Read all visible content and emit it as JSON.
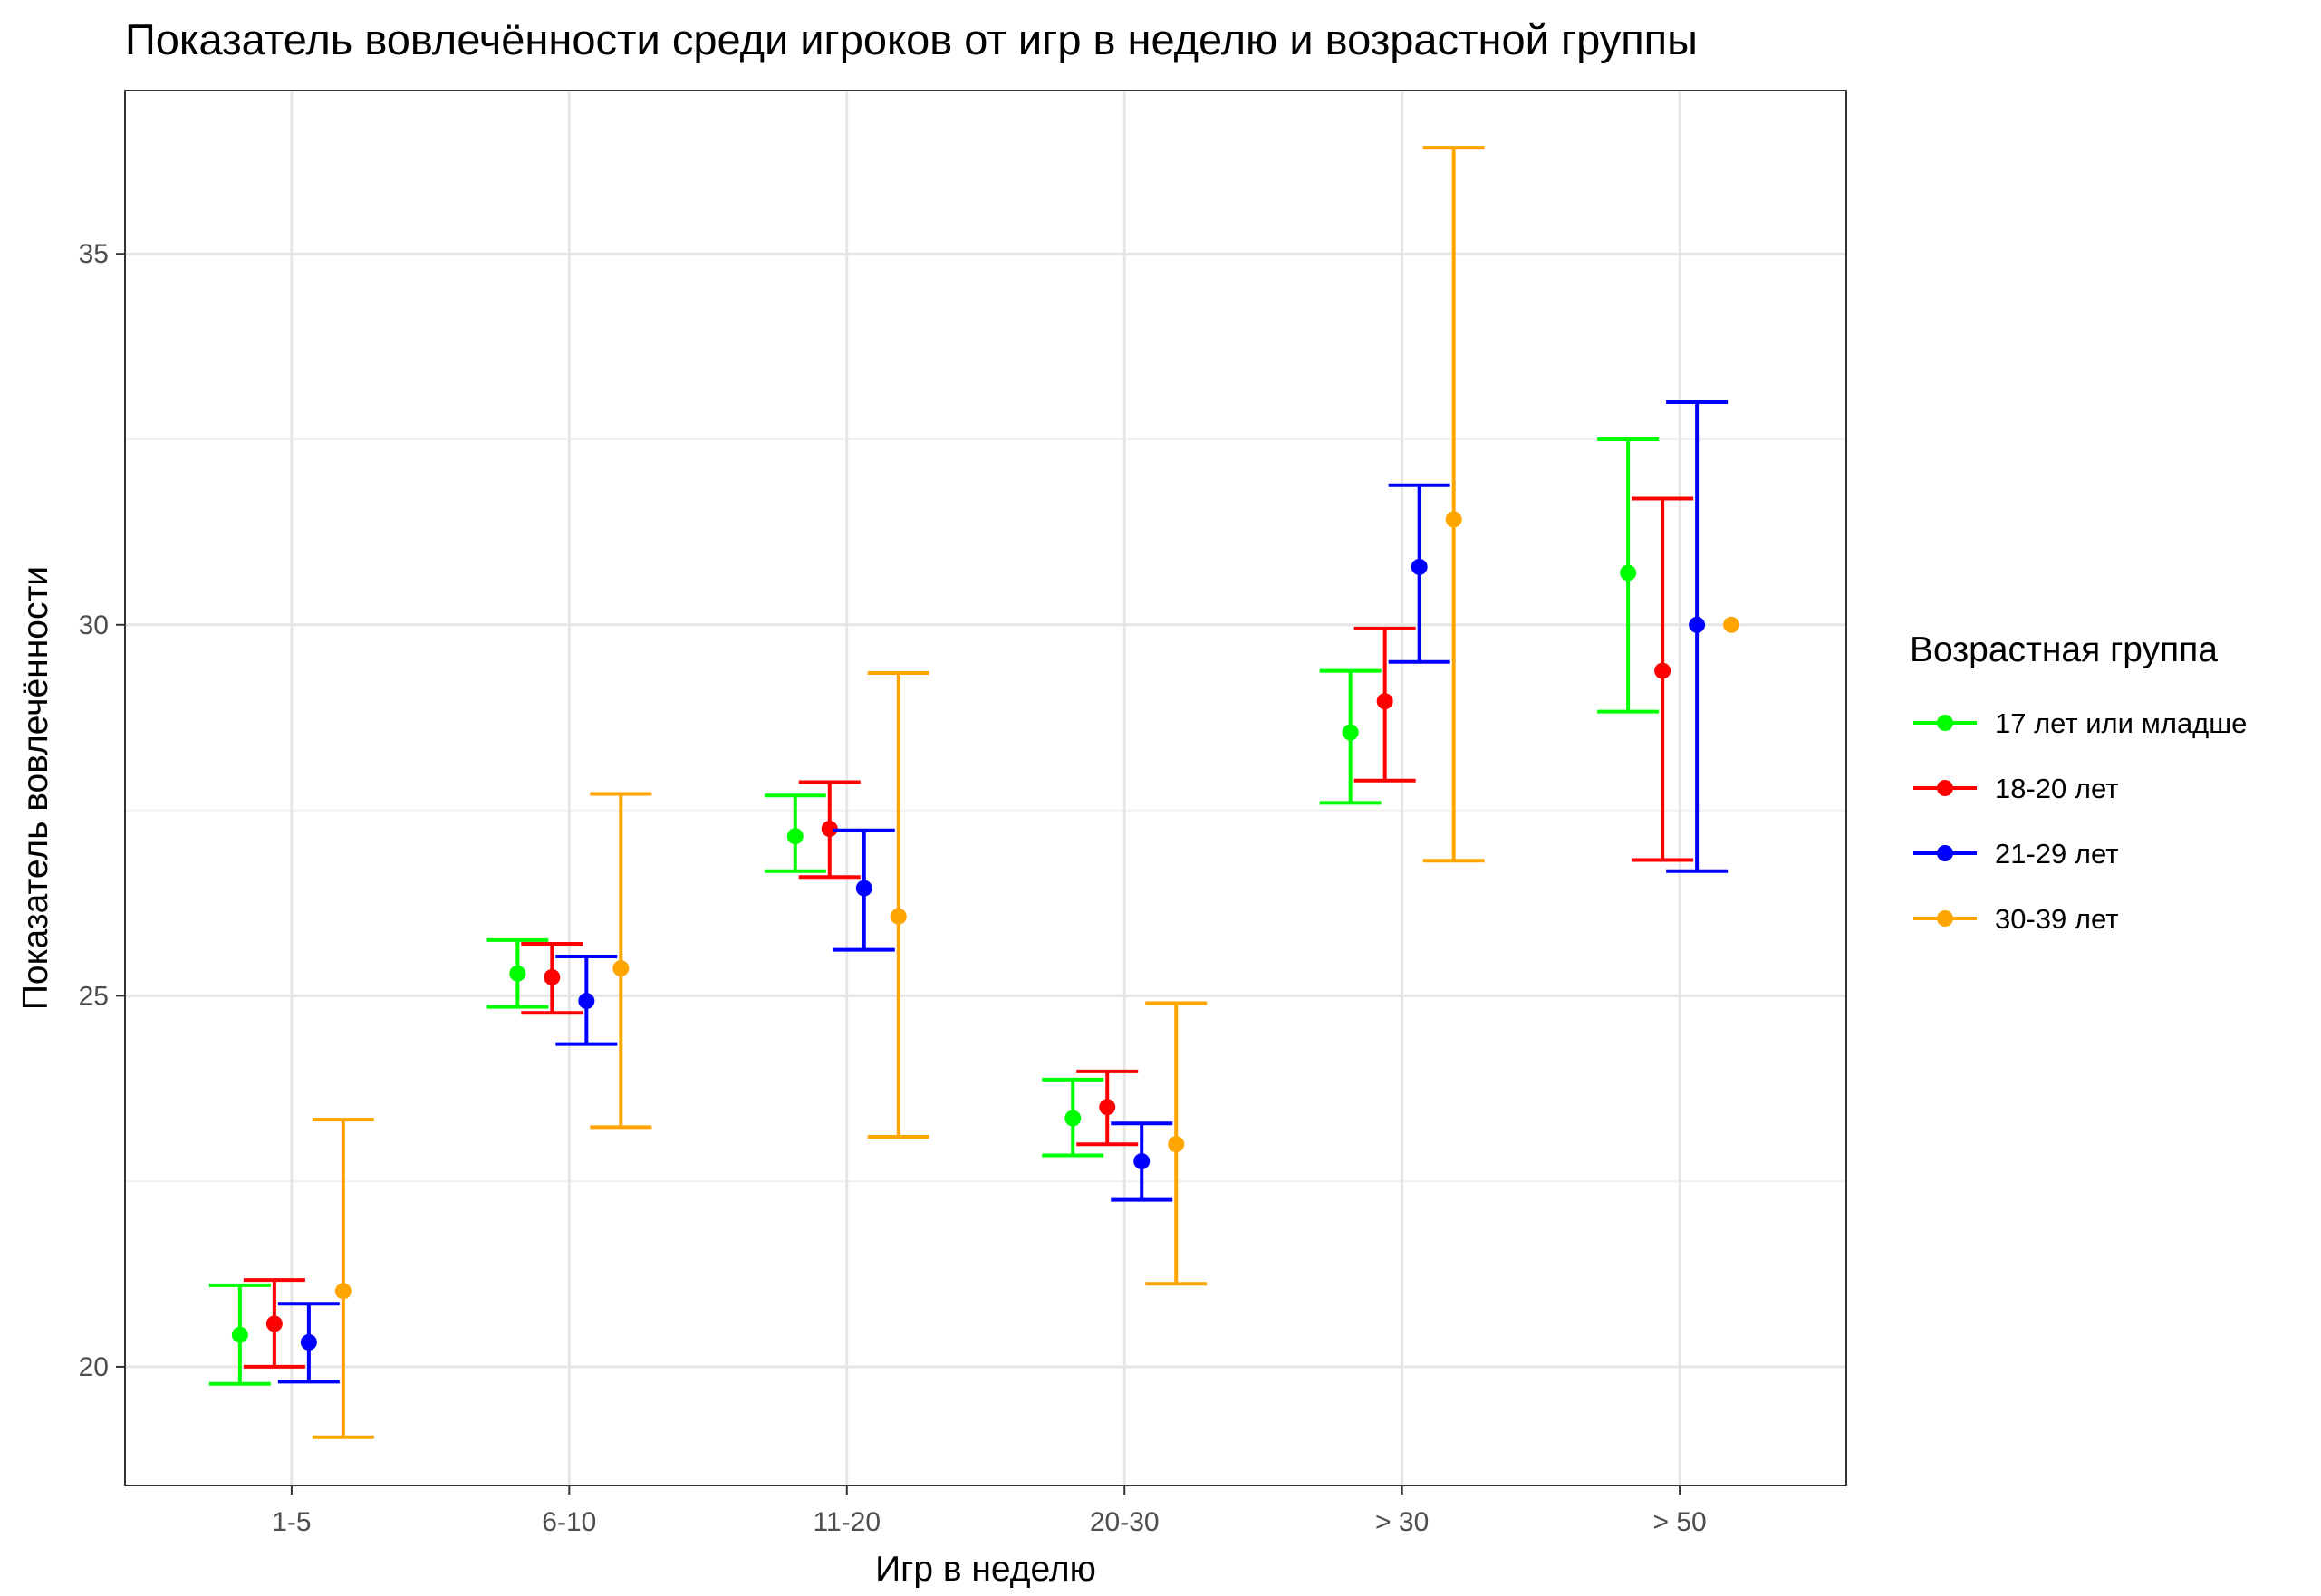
{
  "chart_data": {
    "type": "errorbar",
    "title": "Показатель вовлечённости среди игроков от игр в неделю и возрастной группы",
    "xlabel": "Игр в неделю",
    "ylabel": "Показатель вовлечённости",
    "categories": [
      "1-5",
      "6-10",
      "11-20",
      "20-30",
      "> 30",
      "> 50"
    ],
    "ylim": [
      18.4,
      37.2
    ],
    "yticks": [
      20,
      25,
      30,
      35
    ],
    "grid": true,
    "legend": {
      "title": "Возрастная группа",
      "position": "right"
    },
    "series": [
      {
        "name": "17 лет или младше",
        "color": "#00ff00",
        "values": [
          20.43,
          25.3,
          27.15,
          23.35,
          28.55,
          30.7
        ],
        "lower": [
          19.77,
          24.85,
          26.68,
          22.85,
          27.6,
          28.83
        ],
        "upper": [
          21.1,
          25.75,
          27.7,
          23.87,
          29.38,
          32.5
        ]
      },
      {
        "name": "18-20 лет",
        "color": "#ff0000",
        "values": [
          20.58,
          25.25,
          27.25,
          23.5,
          28.97,
          29.38
        ],
        "lower": [
          20.0,
          24.77,
          26.6,
          23.0,
          27.9,
          26.83
        ],
        "upper": [
          21.17,
          25.7,
          27.88,
          23.98,
          29.95,
          31.7
        ]
      },
      {
        "name": "21-29 лет",
        "color": "#0000ff",
        "values": [
          20.33,
          24.93,
          26.45,
          22.77,
          30.78,
          30.0
        ],
        "lower": [
          19.8,
          24.35,
          25.62,
          22.25,
          29.5,
          26.68
        ],
        "upper": [
          20.85,
          25.53,
          27.23,
          23.28,
          31.88,
          33.0
        ]
      },
      {
        "name": "30-39 лет",
        "color": "#ffa500",
        "values": [
          21.02,
          25.37,
          26.07,
          23.0,
          31.42,
          30.0
        ],
        "lower": [
          19.05,
          23.23,
          23.1,
          21.12,
          26.82,
          null
        ],
        "upper": [
          23.33,
          27.72,
          29.35,
          24.9,
          36.43,
          null
        ]
      }
    ]
  }
}
